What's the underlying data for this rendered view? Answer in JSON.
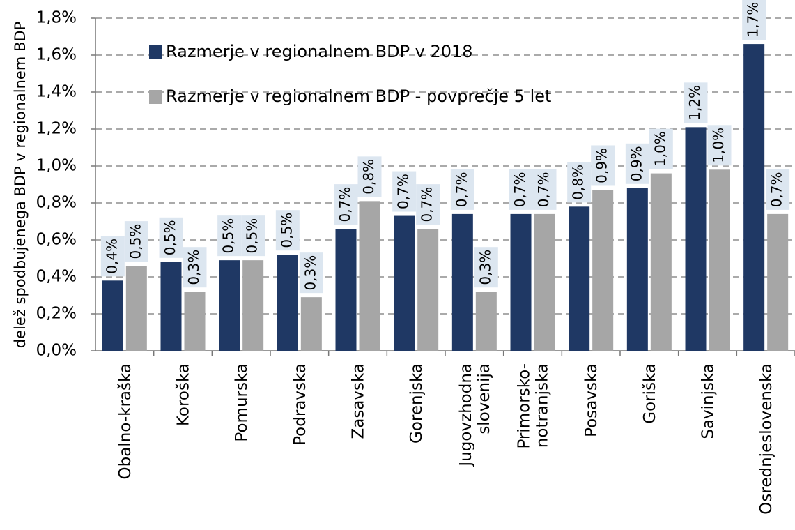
{
  "chart_data": {
    "type": "bar",
    "y_label": "delež spodbujenega BDP v regionalnem BDP",
    "categories": [
      "Obalno-kraška",
      "Koroška",
      "Pomurska",
      "Podravska",
      "Zasavska",
      "Gorenjska",
      "Jugovzhodna\nslovenija",
      "Primorsko-\nnotranjska",
      "Posavska",
      "Goriška",
      "Savinjska",
      "Osrednjeslovenska"
    ],
    "series": [
      {
        "name": "Razmerje v regionalnem BDP v 2018",
        "color": "#1f3864",
        "values": [
          0.38,
          0.48,
          0.49,
          0.52,
          0.66,
          0.73,
          0.74,
          0.74,
          0.78,
          0.88,
          1.21,
          1.66
        ],
        "value_labels": [
          "0,4%",
          "0,5%",
          "0,5%",
          "0,5%",
          "0,7%",
          "0,7%",
          "0,7%",
          "0,7%",
          "0,8%",
          "0,9%",
          "1,2%",
          "1,7%"
        ]
      },
      {
        "name": "Razmerje v regionalnem BDP - povprečje 5 let",
        "color": "#a6a6a6",
        "values": [
          0.46,
          0.32,
          0.49,
          0.29,
          0.81,
          0.66,
          0.32,
          0.74,
          0.87,
          0.96,
          0.98,
          0.74
        ],
        "value_labels": [
          "0,5%",
          "0,3%",
          "0,5%",
          "0,3%",
          "0,8%",
          "0,7%",
          "0,3%",
          "0,7%",
          "0,9%",
          "1,0%",
          "1,0%",
          "0,7%"
        ]
      }
    ],
    "ylim": [
      0,
      1.8
    ],
    "yticks": [
      {
        "value": 0,
        "label": "0,0%"
      },
      {
        "value": 0.2,
        "label": "0,2%"
      },
      {
        "value": 0.4,
        "label": "0,4%"
      },
      {
        "value": 0.6,
        "label": "0,6%"
      },
      {
        "value": 0.8,
        "label": "0,8%"
      },
      {
        "value": 1.0,
        "label": "1,0%"
      },
      {
        "value": 1.2,
        "label": "1,2%"
      },
      {
        "value": 1.4,
        "label": "1,4%"
      },
      {
        "value": 1.6,
        "label": "1,6%"
      },
      {
        "value": 1.8,
        "label": "1,8%"
      }
    ],
    "grid": true,
    "legend": "top-left",
    "label_box_color": "#dce6f0"
  }
}
